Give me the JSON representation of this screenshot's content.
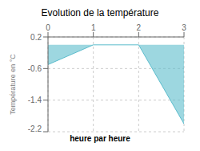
{
  "chart_data": {
    "type": "area",
    "title": "Evolution de la température",
    "ylabel": "Température en °C",
    "xlabel": "heure par heure",
    "x": [
      0,
      1,
      2,
      3
    ],
    "values": [
      -0.5,
      0.0,
      0.0,
      -2.0
    ],
    "color": "#5bbccc",
    "xlim": [
      0,
      3
    ],
    "ylim": [
      -2.2,
      0.2
    ],
    "xticks": [
      0,
      1,
      2,
      3
    ],
    "yticks": [
      0.2,
      -0.6,
      -1.4,
      -2.2
    ],
    "grid": true
  }
}
